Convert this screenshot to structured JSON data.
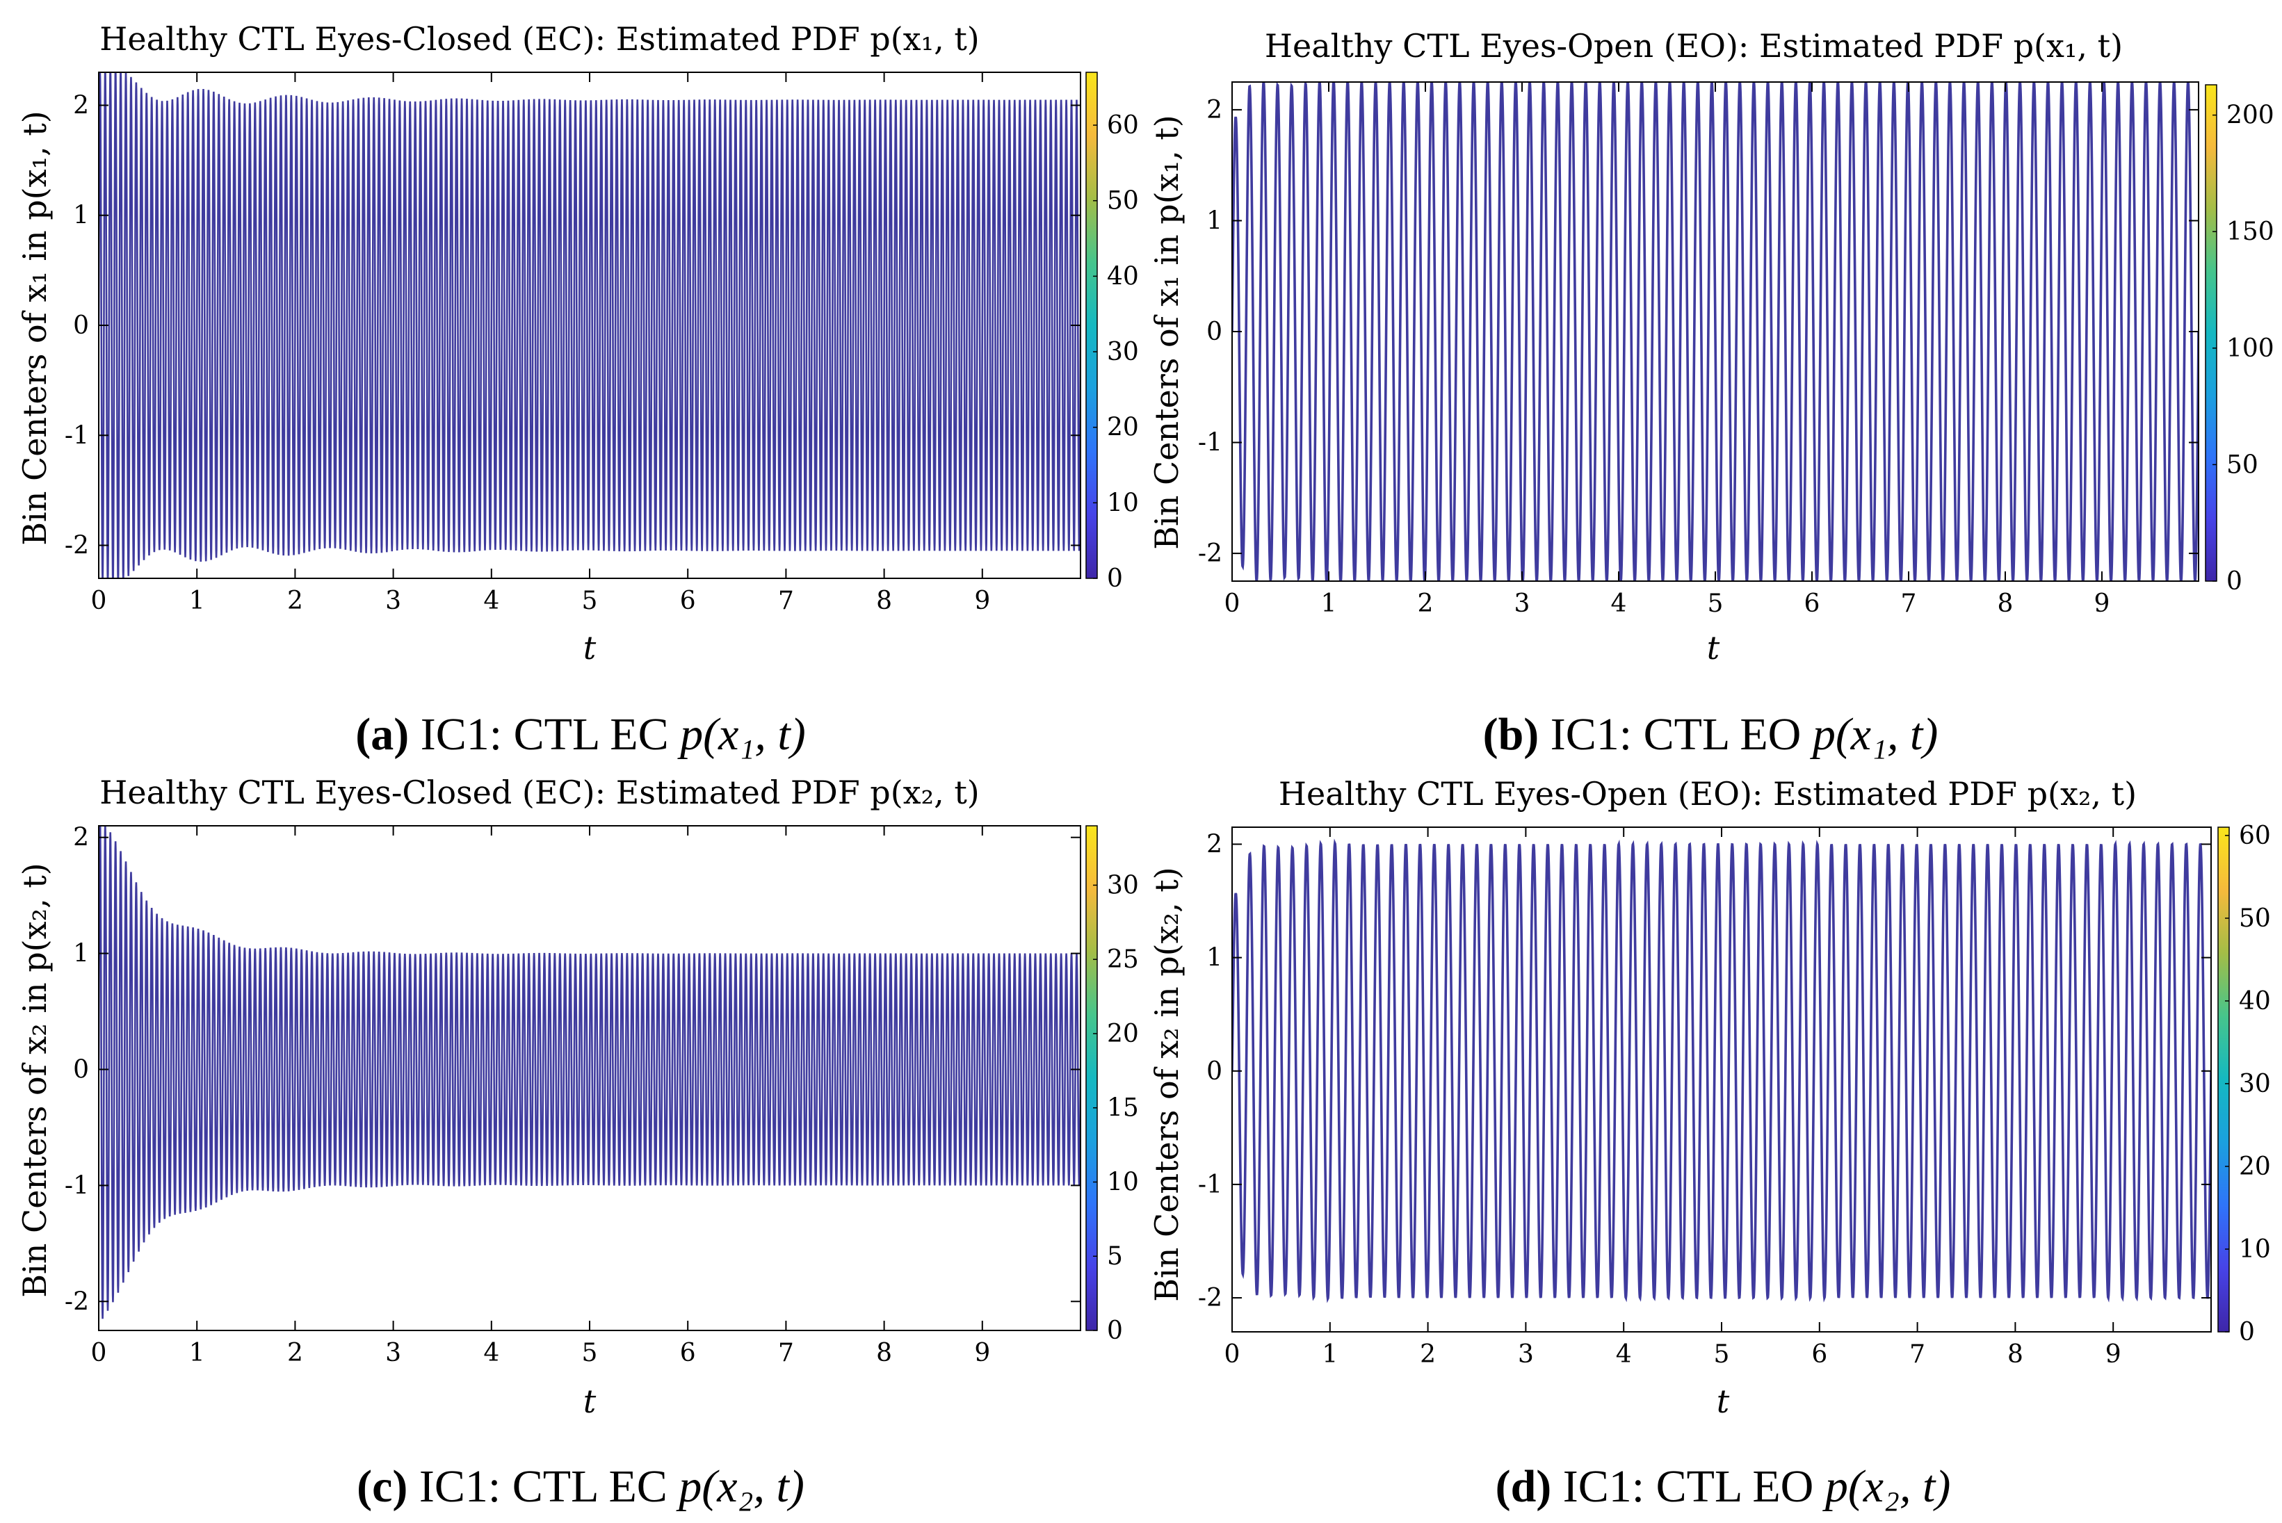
{
  "figure": {
    "style": {
      "wave_color": "#3f3b9e",
      "fill_color": "#3b3a98",
      "axis_color": "#000000",
      "colormap": [
        "#3e26a8",
        "#4743e7",
        "#2f74f9",
        "#1ba0de",
        "#15b8c1",
        "#46c58c",
        "#a3bd47",
        "#f5ba3c",
        "#f9e51c"
      ]
    },
    "panels": [
      {
        "id": "a",
        "title": "Healthy CTL Eyes-Closed (EC): Estimated PDF p(x₁, t)",
        "ylabel": "Bin Centers of x₁ in p(x₁, t)",
        "xlabel": "t",
        "caption": {
          "letter": "(a)",
          "text": " IC1: CTL EC ",
          "math": "p(x₁, t)"
        },
        "x_ticks": [
          "0",
          "1",
          "2",
          "3",
          "4",
          "5",
          "6",
          "7",
          "8",
          "9"
        ],
        "y_ticks": [
          "2",
          "1",
          "0",
          "-1",
          "-2"
        ],
        "colorbar_ticks": [
          "60",
          "50",
          "40",
          "30",
          "20",
          "10",
          "0"
        ]
      },
      {
        "id": "b",
        "title": "Healthy CTL Eyes-Open (EO): Estimated PDF p(x₁, t)",
        "ylabel": "Bin Centers of x₁ in p(x₁, t)",
        "xlabel": "t",
        "caption": {
          "letter": "(b)",
          "text": " IC1: CTL EO ",
          "math": "p(x₁, t)"
        },
        "x_ticks": [
          "0",
          "1",
          "2",
          "3",
          "4",
          "5",
          "6",
          "7",
          "8",
          "9"
        ],
        "y_ticks": [
          "2",
          "1",
          "0",
          "-1",
          "-2"
        ],
        "colorbar_ticks": [
          "200",
          "150",
          "100",
          "50",
          "0"
        ]
      },
      {
        "id": "c",
        "title": "Healthy CTL Eyes-Closed (EC): Estimated PDF p(x₂, t)",
        "ylabel": "Bin Centers of x₂ in p(x₂, t)",
        "xlabel": "t",
        "caption": {
          "letter": "(c)",
          "text": " IC1: CTL EC ",
          "math": "p(x₂, t)"
        },
        "x_ticks": [
          "0",
          "1",
          "2",
          "3",
          "4",
          "5",
          "6",
          "7",
          "8",
          "9"
        ],
        "y_ticks": [
          "2",
          "1",
          "0",
          "-1",
          "-2"
        ],
        "colorbar_ticks": [
          "30",
          "25",
          "20",
          "15",
          "10",
          "5",
          "0"
        ]
      },
      {
        "id": "d",
        "title": "Healthy CTL Eyes-Open (EO): Estimated PDF p(x₂, t)",
        "ylabel": "Bin Centers of x₂ in p(x₂, t)",
        "xlabel": "t",
        "caption": {
          "letter": "(d)",
          "text": " IC1: CTL EO ",
          "math": "p(x₂, t)"
        },
        "x_ticks": [
          "0",
          "1",
          "2",
          "3",
          "4",
          "5",
          "6",
          "7",
          "8",
          "9"
        ],
        "y_ticks": [
          "2",
          "1",
          "0",
          "-1",
          "-2"
        ],
        "colorbar_ticks": [
          "60",
          "50",
          "40",
          "30",
          "20",
          "10",
          "0"
        ]
      }
    ]
  },
  "chart_data": [
    {
      "type": "heatmap",
      "title": "Healthy CTL Eyes-Closed (EC): Estimated PDF p(x₁, t)",
      "xlabel": "t",
      "ylabel": "Bin Centers of x₁ in p(x₁, t)",
      "xlim": [
        0,
        10
      ],
      "ylim": [
        -2.3,
        2.3
      ],
      "x_ticks": [
        0,
        1,
        2,
        3,
        4,
        5,
        6,
        7,
        8,
        9
      ],
      "y_ticks": [
        -2,
        -1,
        0,
        1,
        2
      ],
      "colorbar": {
        "min": 0,
        "max": 67,
        "ticks": [
          0,
          10,
          20,
          30,
          40,
          50,
          60
        ]
      },
      "oscillation": {
        "steady_amplitude": 2.05,
        "initial_amplitude": 2.3,
        "cycles": 190,
        "settle_time": 1.6
      }
    },
    {
      "type": "heatmap",
      "title": "Healthy CTL Eyes-Open (EO): Estimated PDF p(x₁, t)",
      "xlabel": "t",
      "ylabel": "Bin Centers of x₁ in p(x₁, t)",
      "xlim": [
        0,
        10
      ],
      "ylim": [
        -2.25,
        2.25
      ],
      "x_ticks": [
        0,
        1,
        2,
        3,
        4,
        5,
        6,
        7,
        8,
        9
      ],
      "y_ticks": [
        -2,
        -1,
        0,
        1,
        2
      ],
      "colorbar": {
        "min": 0,
        "max": 213,
        "ticks": [
          0,
          50,
          100,
          150,
          200
        ]
      },
      "oscillation": {
        "steady_amplitude": 2.25,
        "initial_amplitude": 1.8,
        "cycles": 69,
        "settle_time": 0.4
      }
    },
    {
      "type": "heatmap",
      "title": "Healthy CTL Eyes-Closed (EC): Estimated PDF p(x₂, t)",
      "xlabel": "t",
      "ylabel": "Bin Centers of x₂ in p(x₂, t)",
      "xlim": [
        0,
        10
      ],
      "ylim": [
        -2.25,
        2.1
      ],
      "x_ticks": [
        0,
        1,
        2,
        3,
        4,
        5,
        6,
        7,
        8,
        9
      ],
      "y_ticks": [
        -2,
        -1,
        0,
        1,
        2
      ],
      "colorbar": {
        "min": 0,
        "max": 34,
        "ticks": [
          0,
          5,
          10,
          15,
          20,
          25,
          30
        ]
      },
      "oscillation": {
        "steady_amplitude": 1.0,
        "initial_amplitude": 2.2,
        "cycles": 190,
        "settle_time": 1.6
      }
    },
    {
      "type": "heatmap",
      "title": "Healthy CTL Eyes-Open (EO): Estimated PDF p(x₂, t)",
      "xlabel": "t",
      "ylabel": "Bin Centers of x₂ in p(x₂, t)",
      "xlim": [
        0,
        10
      ],
      "ylim": [
        -2.3,
        2.15
      ],
      "x_ticks": [
        0,
        1,
        2,
        3,
        4,
        5,
        6,
        7,
        8,
        9
      ],
      "y_ticks": [
        -2,
        -1,
        0,
        1,
        2
      ],
      "colorbar": {
        "min": 0,
        "max": 61,
        "ticks": [
          0,
          10,
          20,
          30,
          40,
          50,
          60
        ]
      },
      "oscillation": {
        "steady_amplitude": 2.0,
        "initial_amplitude": 1.4,
        "cycles": 69,
        "settle_time": 0.4
      }
    }
  ]
}
